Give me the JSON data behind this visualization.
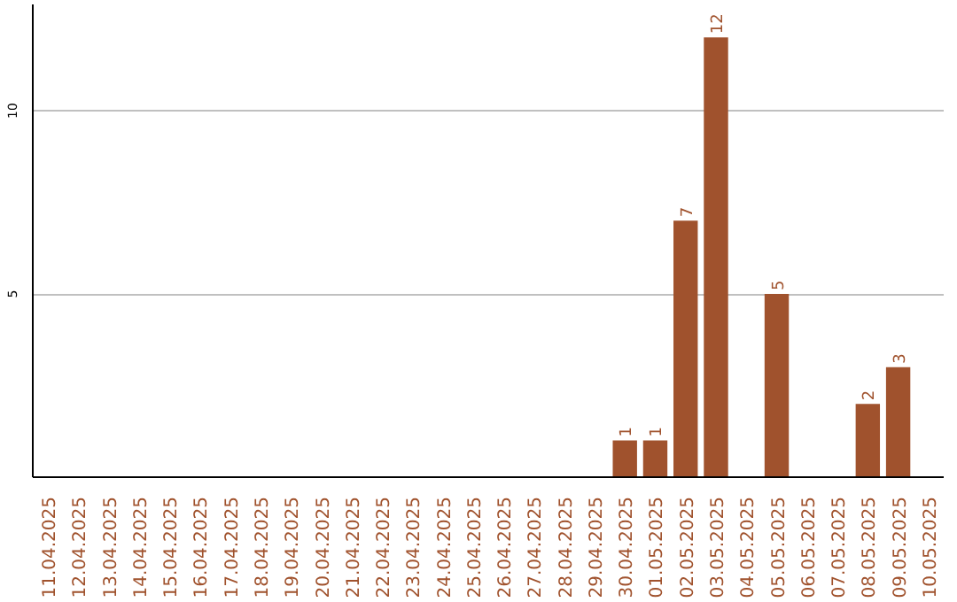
{
  "chart_data": {
    "type": "bar",
    "categories": [
      "11.04.2025",
      "12.04.2025",
      "13.04.2025",
      "14.04.2025",
      "15.04.2025",
      "16.04.2025",
      "17.04.2025",
      "18.04.2025",
      "19.04.2025",
      "20.04.2025",
      "21.04.2025",
      "22.04.2025",
      "23.04.2025",
      "24.04.2025",
      "25.04.2025",
      "26.04.2025",
      "27.04.2025",
      "28.04.2025",
      "29.04.2025",
      "30.04.2025",
      "01.05.2025",
      "02.05.2025",
      "03.05.2025",
      "04.05.2025",
      "05.05.2025",
      "06.05.2025",
      "07.05.2025",
      "08.05.2025",
      "09.05.2025",
      "10.05.2025"
    ],
    "values": [
      null,
      null,
      null,
      null,
      null,
      null,
      null,
      null,
      null,
      null,
      null,
      null,
      null,
      null,
      null,
      null,
      null,
      null,
      null,
      1,
      1,
      7,
      12,
      null,
      5,
      null,
      null,
      2,
      3,
      null
    ],
    "color": "#a0522d",
    "ylim": [
      0,
      12.9
    ],
    "yticks": [
      5,
      10
    ],
    "grid": "y",
    "data_labels": true
  }
}
